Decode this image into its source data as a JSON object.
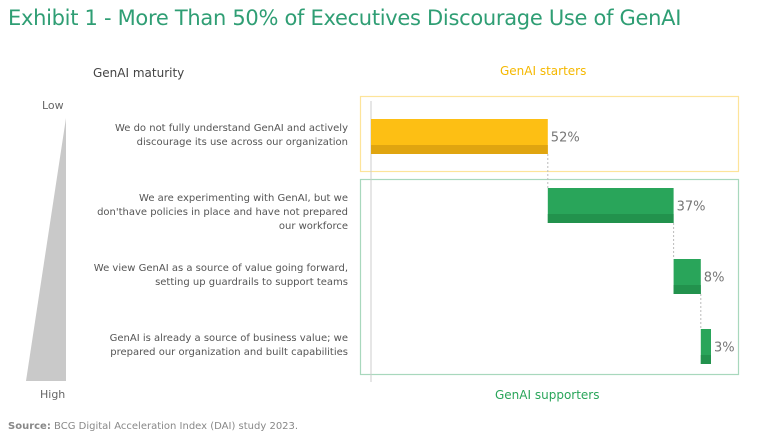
{
  "title": "Exhibit 1 - More Than 50% of Executives Discourage Use of GenAI",
  "source_label": "Source:",
  "source_text": " BCG Digital Acceleration Index (DAI) study 2023.",
  "chart_data": {
    "type": "bar",
    "orientation": "horizontal-waterfall",
    "axis_title": "GenAI maturity",
    "maturity_scale": {
      "top": "Low",
      "bottom": "High"
    },
    "categories": [
      "We do not fully understand GenAI and actively discourage its use across our organization",
      "We are experimenting with GenAI, but we don'thave policies in place and have not prepared our workforce",
      "We view GenAI as a source of value going forward, setting up guardrails to support teams",
      "GenAI is already a source of business value; we prepared our organization and built capabilities"
    ],
    "values": [
      52,
      37,
      8,
      3
    ],
    "data_labels": [
      "52%",
      "37%",
      "8%",
      "3%"
    ],
    "groups": [
      {
        "label": "GenAI starters",
        "members": [
          0
        ],
        "color": "#fdbf14"
      },
      {
        "label": "GenAI supporters",
        "members": [
          1,
          2,
          3
        ],
        "color": "#29a55a"
      }
    ],
    "xlim": [
      0,
      100
    ]
  }
}
